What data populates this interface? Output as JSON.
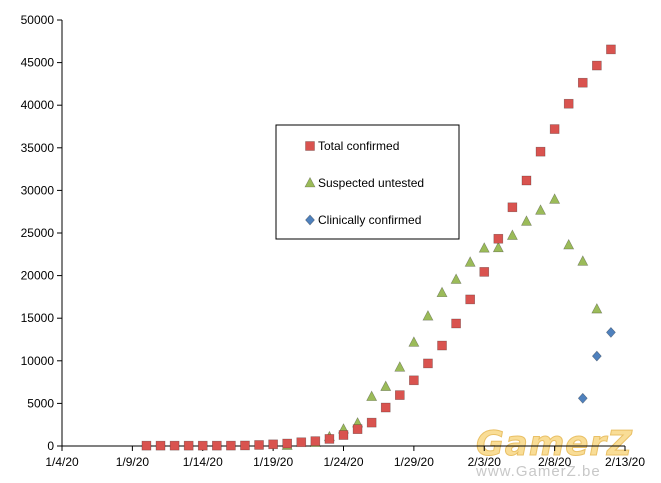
{
  "chart_data": {
    "type": "scatter",
    "title": "",
    "xlabel": "",
    "ylabel": "",
    "xlim": [
      "1/4/20",
      "2/13/20"
    ],
    "ylim": [
      0,
      50000
    ],
    "grid": false,
    "legend_position": "center-left",
    "x_ticks": [
      "1/4/20",
      "1/9/20",
      "1/14/20",
      "1/19/20",
      "1/24/20",
      "1/29/20",
      "2/3/20",
      "2/8/20",
      "2/13/20"
    ],
    "y_ticks": [
      "0",
      "5000",
      "10000",
      "15000",
      "20000",
      "25000",
      "30000",
      "35000",
      "40000",
      "45000",
      "50000"
    ],
    "series": [
      {
        "name": "Total confirmed",
        "marker": "square",
        "color": "#d9534f",
        "points": [
          {
            "x": "1/10/20",
            "y": 41
          },
          {
            "x": "1/11/20",
            "y": 41
          },
          {
            "x": "1/12/20",
            "y": 41
          },
          {
            "x": "1/13/20",
            "y": 41
          },
          {
            "x": "1/14/20",
            "y": 41
          },
          {
            "x": "1/15/20",
            "y": 41
          },
          {
            "x": "1/16/20",
            "y": 45
          },
          {
            "x": "1/17/20",
            "y": 62
          },
          {
            "x": "1/18/20",
            "y": 121
          },
          {
            "x": "1/19/20",
            "y": 198
          },
          {
            "x": "1/20/20",
            "y": 291
          },
          {
            "x": "1/21/20",
            "y": 440
          },
          {
            "x": "1/22/20",
            "y": 571
          },
          {
            "x": "1/23/20",
            "y": 830
          },
          {
            "x": "1/24/20",
            "y": 1287
          },
          {
            "x": "1/25/20",
            "y": 1975
          },
          {
            "x": "1/26/20",
            "y": 2744
          },
          {
            "x": "1/27/20",
            "y": 4515
          },
          {
            "x": "1/28/20",
            "y": 5974
          },
          {
            "x": "1/29/20",
            "y": 7711
          },
          {
            "x": "1/30/20",
            "y": 9692
          },
          {
            "x": "1/31/20",
            "y": 11791
          },
          {
            "x": "2/1/20",
            "y": 14380
          },
          {
            "x": "2/2/20",
            "y": 17205
          },
          {
            "x": "2/3/20",
            "y": 20438
          },
          {
            "x": "2/4/20",
            "y": 24324
          },
          {
            "x": "2/5/20",
            "y": 28018
          },
          {
            "x": "2/6/20",
            "y": 31161
          },
          {
            "x": "2/7/20",
            "y": 34546
          },
          {
            "x": "2/8/20",
            "y": 37198
          },
          {
            "x": "2/9/20",
            "y": 40171
          },
          {
            "x": "2/10/20",
            "y": 42638
          },
          {
            "x": "2/11/20",
            "y": 44653
          },
          {
            "x": "2/12/20",
            "y": 46550
          }
        ]
      },
      {
        "name": "Suspected untested",
        "marker": "triangle",
        "color": "#9bbb59",
        "points": [
          {
            "x": "1/20/20",
            "y": 54
          },
          {
            "x": "1/22/20",
            "y": 393
          },
          {
            "x": "1/23/20",
            "y": 1072
          },
          {
            "x": "1/24/20",
            "y": 1965
          },
          {
            "x": "1/25/20",
            "y": 2684
          },
          {
            "x": "1/26/20",
            "y": 5794
          },
          {
            "x": "1/27/20",
            "y": 6973
          },
          {
            "x": "1/28/20",
            "y": 9239
          },
          {
            "x": "1/29/20",
            "y": 12167
          },
          {
            "x": "1/30/20",
            "y": 15238
          },
          {
            "x": "1/31/20",
            "y": 17988
          },
          {
            "x": "2/1/20",
            "y": 19544
          },
          {
            "x": "2/2/20",
            "y": 21558
          },
          {
            "x": "2/3/20",
            "y": 23214
          },
          {
            "x": "2/4/20",
            "y": 23260
          },
          {
            "x": "2/5/20",
            "y": 24702
          },
          {
            "x": "2/6/20",
            "y": 26359
          },
          {
            "x": "2/7/20",
            "y": 27657
          },
          {
            "x": "2/8/20",
            "y": 28942
          },
          {
            "x": "2/9/20",
            "y": 23589
          },
          {
            "x": "2/10/20",
            "y": 21675
          },
          {
            "x": "2/11/20",
            "y": 16067
          }
        ]
      },
      {
        "name": "Clinically confirmed",
        "marker": "diamond",
        "color": "#4f81bd",
        "points": [
          {
            "x": "2/10/20",
            "y": 5600
          },
          {
            "x": "2/11/20",
            "y": 10550
          },
          {
            "x": "2/12/20",
            "y": 13332
          }
        ]
      }
    ]
  },
  "watermark": {
    "main": "GamerZ",
    "sub": "www.GamerZ.be"
  }
}
